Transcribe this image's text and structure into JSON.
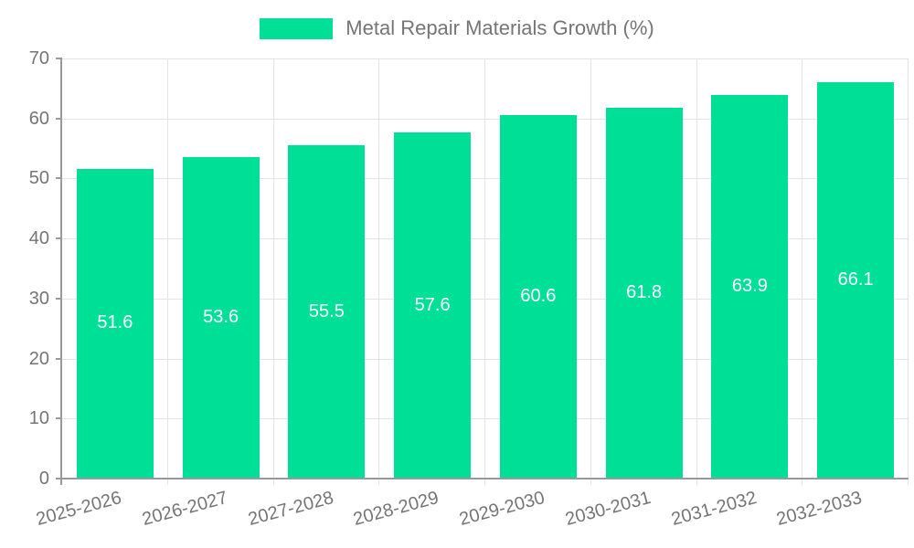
{
  "chart_data": {
    "type": "bar",
    "title": "Metal Repair Materials Growth (%)",
    "categories": [
      "2025-2026",
      "2026-2027",
      "2027-2028",
      "2028-2029",
      "2029-2030",
      "2030-2031",
      "2031-2032",
      "2032-2033"
    ],
    "values": [
      51.6,
      53.6,
      55.5,
      57.6,
      60.6,
      61.8,
      63.9,
      66.1
    ],
    "value_labels": [
      "51.6",
      "53.6",
      "55.5",
      "57.6",
      "60.6",
      "61.8",
      "63.9",
      "66.1"
    ],
    "y_tick_labels": [
      "0",
      "10",
      "20",
      "30",
      "40",
      "50",
      "60",
      "70"
    ],
    "ylim": [
      0,
      70
    ],
    "ytick_step": 10,
    "xlabel": "",
    "ylabel": "",
    "grid": true,
    "legend_position": "top-center",
    "x_label_rotation_deg": -15,
    "colors": {
      "bar": "#00DF96",
      "bar_value_text": "#ffffff",
      "axis_text": "#757575",
      "axis_line": "#999999",
      "gridline": "#e4e4e4",
      "background": "#ffffff"
    }
  }
}
